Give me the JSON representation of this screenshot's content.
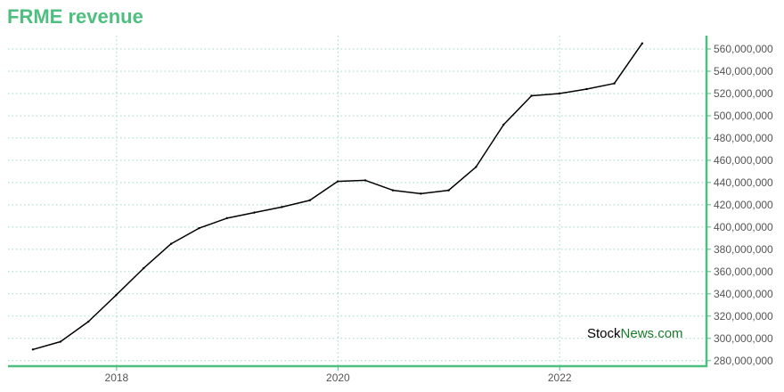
{
  "chart_data": {
    "type": "line",
    "title": "FRME revenue",
    "xlabel": "",
    "ylabel": "",
    "ylim": [
      275000000,
      572000000
    ],
    "xlim": [
      "2017-01-08",
      "2023-04-30"
    ],
    "y_ticks": [
      280000000,
      300000000,
      320000000,
      340000000,
      360000000,
      380000000,
      400000000,
      420000000,
      440000000,
      460000000,
      480000000,
      500000000,
      520000000,
      540000000,
      560000000
    ],
    "y_tick_labels": [
      "280,000,000",
      "300,000,000",
      "320,000,000",
      "340,000,000",
      "360,000,000",
      "380,000,000",
      "400,000,000",
      "420,000,000",
      "440,000,000",
      "460,000,000",
      "480,000,000",
      "500,000,000",
      "520,000,000",
      "540,000,000",
      "560,000,000"
    ],
    "x_ticks": [
      "2018-01-01",
      "2020-01-01",
      "2022-01-01"
    ],
    "x_tick_labels": [
      "2018",
      "2020",
      "2022"
    ],
    "grid": true,
    "y_axis_side": "right",
    "series": [
      {
        "color": "#000000",
        "points": [
          {
            "x": "2017-03-31",
            "y": 290000000
          },
          {
            "x": "2017-06-30",
            "y": 297000000
          },
          {
            "x": "2017-09-30",
            "y": 315000000
          },
          {
            "x": "2017-12-31",
            "y": 339000000
          },
          {
            "x": "2018-03-31",
            "y": 363000000
          },
          {
            "x": "2018-06-30",
            "y": 385000000
          },
          {
            "x": "2018-09-30",
            "y": 399000000
          },
          {
            "x": "2018-12-31",
            "y": 408000000
          },
          {
            "x": "2019-03-31",
            "y": 413000000
          },
          {
            "x": "2019-06-30",
            "y": 418000000
          },
          {
            "x": "2019-09-30",
            "y": 424000000
          },
          {
            "x": "2019-12-31",
            "y": 441000000
          },
          {
            "x": "2020-03-31",
            "y": 442000000
          },
          {
            "x": "2020-06-30",
            "y": 433000000
          },
          {
            "x": "2020-09-30",
            "y": 430000000
          },
          {
            "x": "2020-12-31",
            "y": 433000000
          },
          {
            "x": "2021-03-31",
            "y": 454000000
          },
          {
            "x": "2021-06-30",
            "y": 492000000
          },
          {
            "x": "2021-09-30",
            "y": 518000000
          },
          {
            "x": "2021-12-31",
            "y": 520000000
          },
          {
            "x": "2022-03-31",
            "y": 524000000
          },
          {
            "x": "2022-06-30",
            "y": 529000000
          },
          {
            "x": "2022-09-30",
            "y": 565000000
          }
        ]
      }
    ],
    "colors": {
      "title": "#4fbf7f",
      "axis": "#4fbf7f",
      "grid": "#9dd9c0",
      "line": "#000000"
    },
    "watermark": {
      "part1": "Stock",
      "part2": "News.com",
      "color1": "#000000",
      "color2": "#1a7a2a"
    }
  }
}
